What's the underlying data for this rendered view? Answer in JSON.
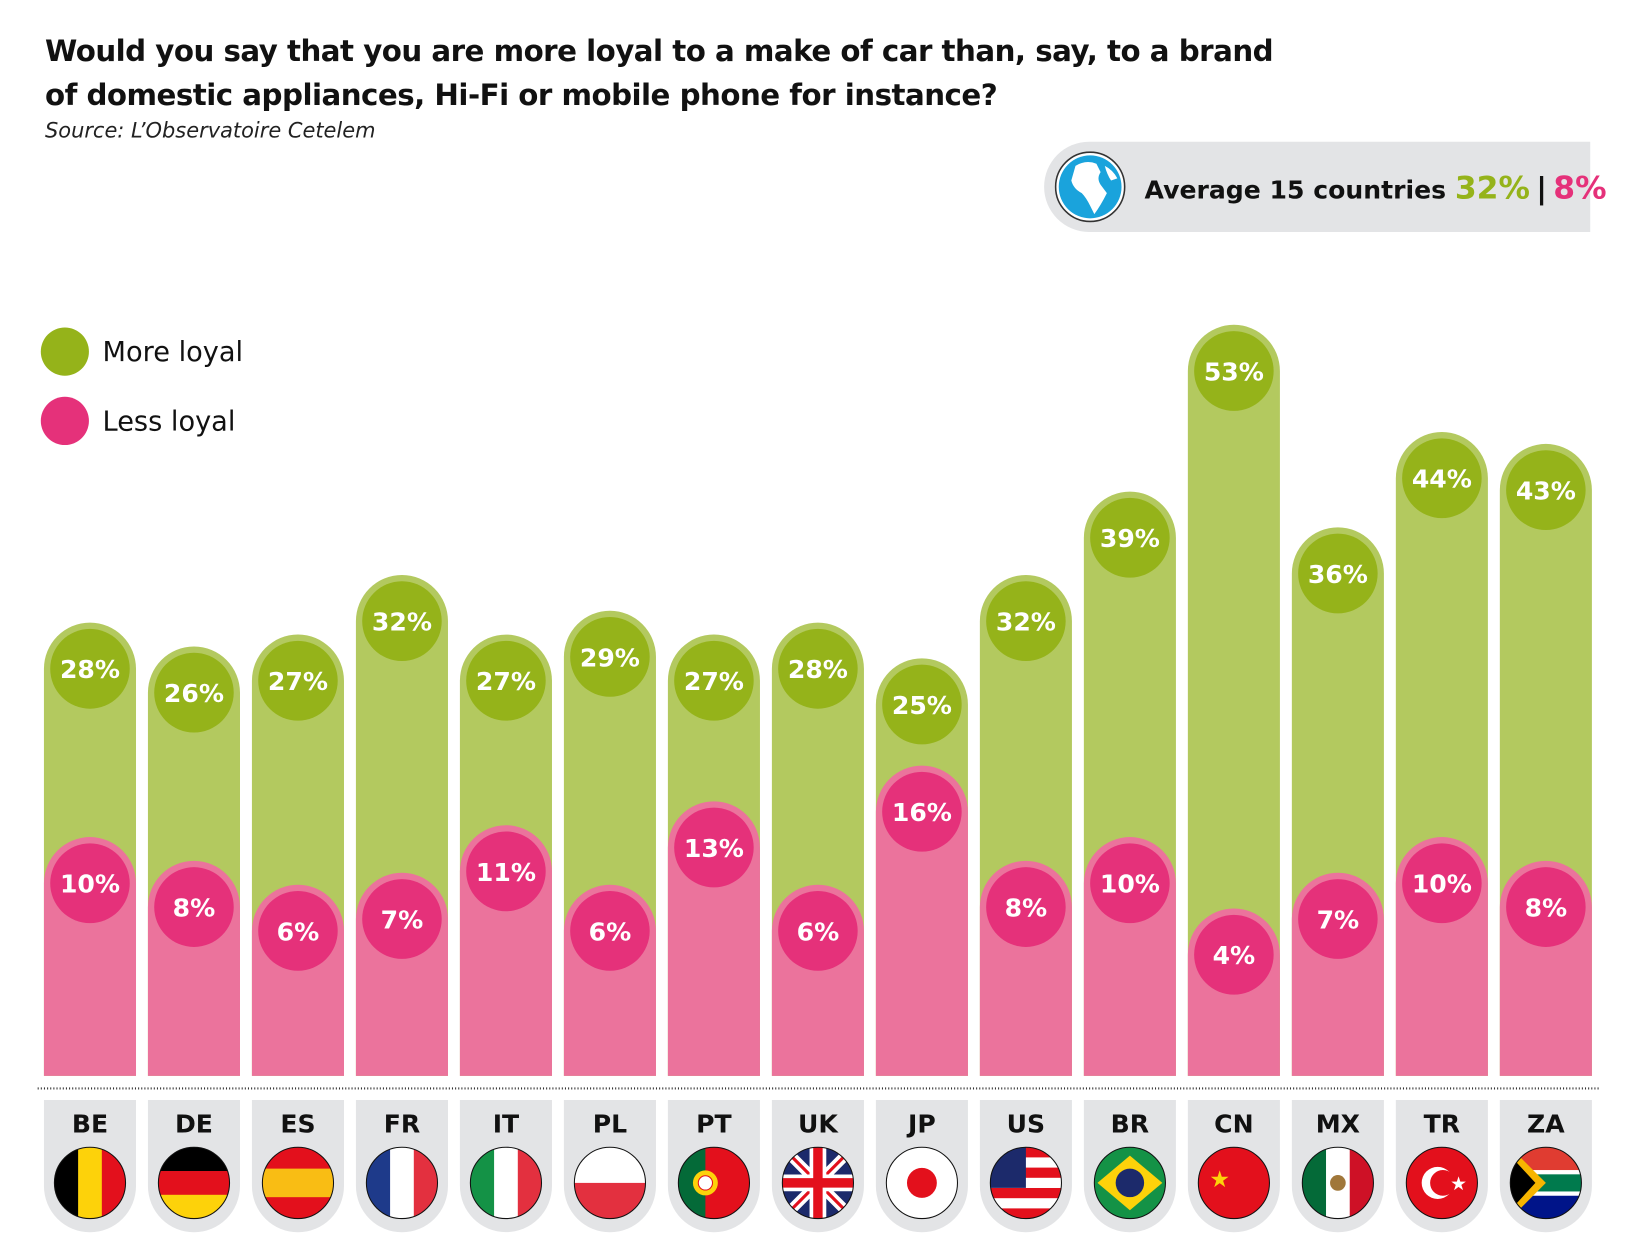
{
  "title_line1": "Would you say that you are more loyal to a make of car than, say, to a brand",
  "title_line2": "of domestic appliances, Hi-Fi or mobile phone for instance?",
  "source": "Source: L’Observatoire Cetelem",
  "average": {
    "label": "Average 15 countries",
    "more": "32%",
    "separator": "|",
    "less": "8%",
    "icon": "globe-icon"
  },
  "colors": {
    "more_bar": "#b3c95f",
    "more_dot": "#95b31a",
    "less_bar": "#eb739c",
    "less_dot": "#e5317a",
    "tab": "#e3e4e6"
  },
  "chart_data": {
    "type": "bar",
    "title": "Would you say that you are more loyal to a make of car than, say, to a brand of domestic appliances, Hi-Fi or mobile phone for instance?",
    "categories": [
      "BE",
      "DE",
      "ES",
      "FR",
      "IT",
      "PL",
      "PT",
      "UK",
      "JP",
      "US",
      "BR",
      "CN",
      "MX",
      "TR",
      "ZA"
    ],
    "series": [
      {
        "name": "More loyal",
        "values": [
          28,
          26,
          27,
          32,
          27,
          29,
          27,
          28,
          25,
          32,
          39,
          53,
          36,
          44,
          43
        ]
      },
      {
        "name": "Less loyal",
        "values": [
          10,
          8,
          6,
          7,
          11,
          6,
          13,
          6,
          16,
          8,
          10,
          4,
          7,
          10,
          8
        ]
      }
    ],
    "unit": "%",
    "legend": "top-left",
    "grid": false
  }
}
